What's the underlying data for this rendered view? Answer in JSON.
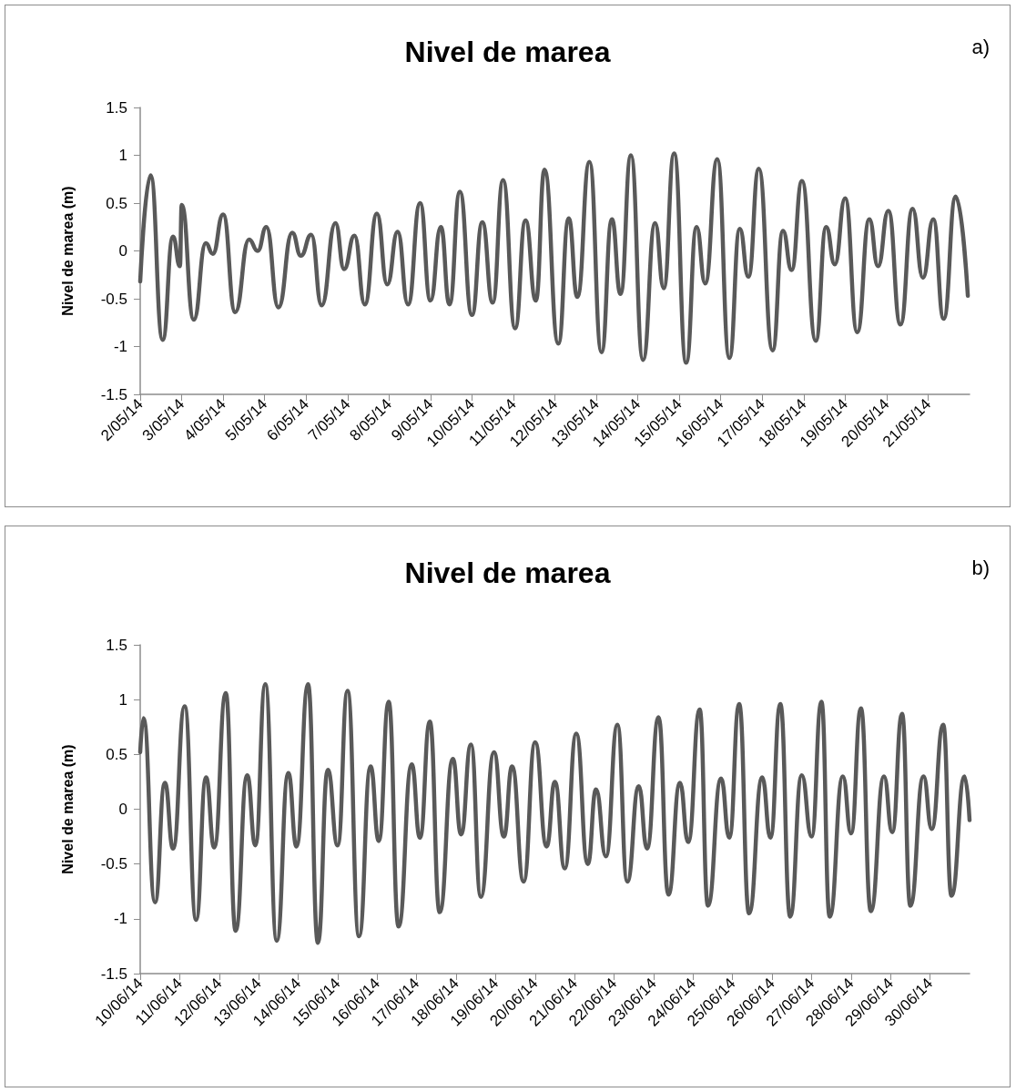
{
  "chart_data": [
    {
      "type": "line",
      "title": "Nivel de marea",
      "ylabel": "Nivel de marea (m)",
      "annotations": [
        "a)"
      ],
      "color": "#595959",
      "marker": "none",
      "line_style": "solid",
      "xlim": [
        "--05-02",
        "--05-22"
      ],
      "ylim": [
        -1.5,
        1.5
      ],
      "yticks": [
        -1.5,
        -1,
        -0.5,
        0,
        0.5,
        1,
        1.5
      ],
      "xticks": [
        {
          "value": "--05-02",
          "label": "2/05/14"
        },
        {
          "value": "--05-03",
          "label": "3/05/14"
        },
        {
          "value": "--05-04",
          "label": "4/05/14"
        },
        {
          "value": "--05-05",
          "label": "5/05/14"
        },
        {
          "value": "--05-06",
          "label": "6/05/14"
        },
        {
          "value": "--05-07",
          "label": "7/05/14"
        },
        {
          "value": "--05-08",
          "label": "8/05/14"
        },
        {
          "value": "--05-09",
          "label": "9/05/14"
        },
        {
          "value": "--05-10",
          "label": "10/05/14"
        },
        {
          "value": "--05-11",
          "label": "11/05/14"
        },
        {
          "value": "--05-12",
          "label": "12/05/14"
        },
        {
          "value": "--05-13",
          "label": "13/05/14"
        },
        {
          "value": "--05-14",
          "label": "14/05/14"
        },
        {
          "value": "--05-15",
          "label": "15/05/14"
        },
        {
          "value": "--05-16",
          "label": "16/05/14"
        },
        {
          "value": "--05-17",
          "label": "17/05/14"
        },
        {
          "value": "--05-18",
          "label": "18/05/14"
        },
        {
          "value": "--05-19",
          "label": "19/05/14"
        },
        {
          "value": "--05-20",
          "label": "20/05/14"
        },
        {
          "value": "--05-21",
          "label": "21/05/14"
        }
      ],
      "x": [
        "--05-02T00:00",
        "--05-02T06:00",
        "--05-02T13:00",
        "--05-02T19:00",
        "--05-02T23:00",
        "--05-03T00:00",
        "--05-03T07:00",
        "--05-03T14:00",
        "--05-03T18:00",
        "--05-04T00:00",
        "--05-04T07:00",
        "--05-04T15:00",
        "--05-04T20:00",
        "--05-05T01:00",
        "--05-05T08:00",
        "--05-05T16:00",
        "--05-05T21:00",
        "--05-06T03:00",
        "--05-06T09:00",
        "--05-06T17:00",
        "--05-06T22:00",
        "--05-07T04:00",
        "--05-07T10:00",
        "--05-07T17:00",
        "--05-07T23:00",
        "--05-08T05:00",
        "--05-08T11:00",
        "--05-08T18:00",
        "--05-09T00:00",
        "--05-09T06:00",
        "--05-09T11:00",
        "--05-09T17:00",
        "--05-10T00:00",
        "--05-10T06:00",
        "--05-10T12:00",
        "--05-10T18:00",
        "--05-11T01:00",
        "--05-11T07:00",
        "--05-11T13:00",
        "--05-11T18:00",
        "--05-12T02:00",
        "--05-12T08:00",
        "--05-12T13:00",
        "--05-12T20:00",
        "--05-13T03:00",
        "--05-13T09:00",
        "--05-13T14:00",
        "--05-13T20:00",
        "--05-14T03:00",
        "--05-14T10:00",
        "--05-14T15:00",
        "--05-14T21:00",
        "--05-15T04:00",
        "--05-15T10:00",
        "--05-15T15:00",
        "--05-15T22:00",
        "--05-16T05:00",
        "--05-16T11:00",
        "--05-16T16:00",
        "--05-16T22:00",
        "--05-17T06:00",
        "--05-17T12:00",
        "--05-17T17:00",
        "--05-17T23:00",
        "--05-18T07:00",
        "--05-18T13:00",
        "--05-18T18:00",
        "--05-19T00:00",
        "--05-19T07:00",
        "--05-19T14:00",
        "--05-19T19:00",
        "--05-20T01:00",
        "--05-20T08:00",
        "--05-20T15:00",
        "--05-20T21:00",
        "--05-21T03:00",
        "--05-21T09:00",
        "--05-21T16:00",
        "--05-21T23:00"
      ],
      "values": [
        -0.32,
        0.79,
        -0.93,
        0.15,
        -0.16,
        0.48,
        -0.72,
        0.08,
        -0.03,
        0.38,
        -0.64,
        0.12,
        0.0,
        0.25,
        -0.59,
        0.19,
        -0.05,
        0.17,
        -0.57,
        0.29,
        -0.19,
        0.16,
        -0.56,
        0.39,
        -0.35,
        0.2,
        -0.56,
        0.5,
        -0.52,
        0.25,
        -0.56,
        0.62,
        -0.67,
        0.3,
        -0.54,
        0.74,
        -0.81,
        0.32,
        -0.52,
        0.85,
        -0.97,
        0.34,
        -0.48,
        0.93,
        -1.06,
        0.33,
        -0.45,
        1.0,
        -1.14,
        0.29,
        -0.39,
        1.02,
        -1.17,
        0.25,
        -0.34,
        0.96,
        -1.12,
        0.23,
        -0.27,
        0.86,
        -1.04,
        0.21,
        -0.2,
        0.73,
        -0.94,
        0.25,
        -0.14,
        0.55,
        -0.85,
        0.33,
        -0.16,
        0.42,
        -0.77,
        0.44,
        -0.28,
        0.33,
        -0.71,
        0.57,
        -0.47
      ]
    },
    {
      "type": "line",
      "title": "Nivel de marea",
      "ylabel": "Nivel de marea (m)",
      "annotations": [
        "b)"
      ],
      "color": "#595959",
      "marker": "none",
      "line_style": "solid",
      "xlim": [
        "--06-10",
        "--07-01"
      ],
      "ylim": [
        -1.5,
        1.5
      ],
      "yticks": [
        -1.5,
        -1,
        -0.5,
        0,
        0.5,
        1,
        1.5
      ],
      "xticks": [
        {
          "value": "--06-10",
          "label": "10/06/14"
        },
        {
          "value": "--06-11",
          "label": "11/06/14"
        },
        {
          "value": "--06-12",
          "label": "12/06/14"
        },
        {
          "value": "--06-13",
          "label": "13/06/14"
        },
        {
          "value": "--06-14",
          "label": "14/06/14"
        },
        {
          "value": "--06-15",
          "label": "15/06/14"
        },
        {
          "value": "--06-16",
          "label": "16/06/14"
        },
        {
          "value": "--06-17",
          "label": "17/06/14"
        },
        {
          "value": "--06-18",
          "label": "18/06/14"
        },
        {
          "value": "--06-19",
          "label": "19/06/14"
        },
        {
          "value": "--06-20",
          "label": "20/06/14"
        },
        {
          "value": "--06-21",
          "label": "21/06/14"
        },
        {
          "value": "--06-22",
          "label": "22/06/14"
        },
        {
          "value": "--06-23",
          "label": "23/06/14"
        },
        {
          "value": "--06-24",
          "label": "24/06/14"
        },
        {
          "value": "--06-25",
          "label": "25/06/14"
        },
        {
          "value": "--06-26",
          "label": "26/06/14"
        },
        {
          "value": "--06-27",
          "label": "27/06/14"
        },
        {
          "value": "--06-28",
          "label": "28/06/14"
        },
        {
          "value": "--06-29",
          "label": "29/06/14"
        },
        {
          "value": "--06-30",
          "label": "30/06/14"
        }
      ],
      "x": [
        "--06-10T00:00",
        "--06-10T02:00",
        "--06-10T09:00",
        "--06-10T15:00",
        "--06-10T20:00",
        "--06-11T03:00",
        "--06-11T10:00",
        "--06-11T16:00",
        "--06-11T21:00",
        "--06-12T04:00",
        "--06-12T10:00",
        "--06-12T17:00",
        "--06-12T22:00",
        "--06-13T04:00",
        "--06-13T11:00",
        "--06-13T18:00",
        "--06-13T23:00",
        "--06-14T06:00",
        "--06-14T12:00",
        "--06-14T18:00",
        "--06-15T00:00",
        "--06-15T06:00",
        "--06-15T13:00",
        "--06-15T20:00",
        "--06-16T01:00",
        "--06-16T07:00",
        "--06-16T13:00",
        "--06-16T21:00",
        "--06-17T02:00",
        "--06-17T08:00",
        "--06-17T14:00",
        "--06-17T22:00",
        "--06-18T03:00",
        "--06-18T09:00",
        "--06-18T15:00",
        "--06-18T23:00",
        "--06-19T05:00",
        "--06-19T10:00",
        "--06-19T17:00",
        "--06-20T00:00",
        "--06-20T07:00",
        "--06-20T12:00",
        "--06-20T18:00",
        "--06-21T01:00",
        "--06-21T08:00",
        "--06-21T13:00",
        "--06-21T19:00",
        "--06-22T02:00",
        "--06-22T08:00",
        "--06-22T15:00",
        "--06-22T20:00",
        "--06-23T03:00",
        "--06-23T09:00",
        "--06-23T16:00",
        "--06-23T21:00",
        "--06-24T04:00",
        "--06-24T09:00",
        "--06-24T17:00",
        "--06-24T22:00",
        "--06-25T04:00",
        "--06-25T10:00",
        "--06-25T18:00",
        "--06-25T23:00",
        "--06-26T05:00",
        "--06-26T11:00",
        "--06-26T18:00",
        "--06-27T00:00",
        "--06-27T06:00",
        "--06-27T11:00",
        "--06-27T19:00",
        "--06-28T00:00",
        "--06-28T06:00",
        "--06-28T12:00",
        "--06-28T20:00",
        "--06-29T01:00",
        "--06-29T07:00",
        "--06-29T12:00",
        "--06-29T20:00",
        "--06-30T01:00",
        "--06-30T08:00",
        "--06-30T13:00",
        "--06-30T21:00",
        "--07-01T00:00"
      ],
      "values": [
        0.52,
        0.83,
        -0.85,
        0.24,
        -0.36,
        0.94,
        -1.01,
        0.29,
        -0.35,
        1.06,
        -1.11,
        0.31,
        -0.33,
        1.14,
        -1.2,
        0.33,
        -0.34,
        1.14,
        -1.22,
        0.36,
        -0.33,
        1.08,
        -1.16,
        0.39,
        -0.29,
        0.98,
        -1.07,
        0.41,
        -0.26,
        0.8,
        -0.94,
        0.46,
        -0.23,
        0.59,
        -0.8,
        0.52,
        -0.25,
        0.39,
        -0.66,
        0.61,
        -0.34,
        0.25,
        -0.54,
        0.69,
        -0.5,
        0.18,
        -0.43,
        0.77,
        -0.66,
        0.21,
        -0.36,
        0.84,
        -0.78,
        0.24,
        -0.3,
        0.91,
        -0.88,
        0.28,
        -0.26,
        0.96,
        -0.95,
        0.29,
        -0.26,
        0.96,
        -0.98,
        0.31,
        -0.25,
        0.98,
        -0.98,
        0.3,
        -0.22,
        0.92,
        -0.93,
        0.3,
        -0.21,
        0.87,
        -0.88,
        0.3,
        -0.18,
        0.77,
        -0.79,
        0.3,
        -0.1
      ]
    }
  ]
}
